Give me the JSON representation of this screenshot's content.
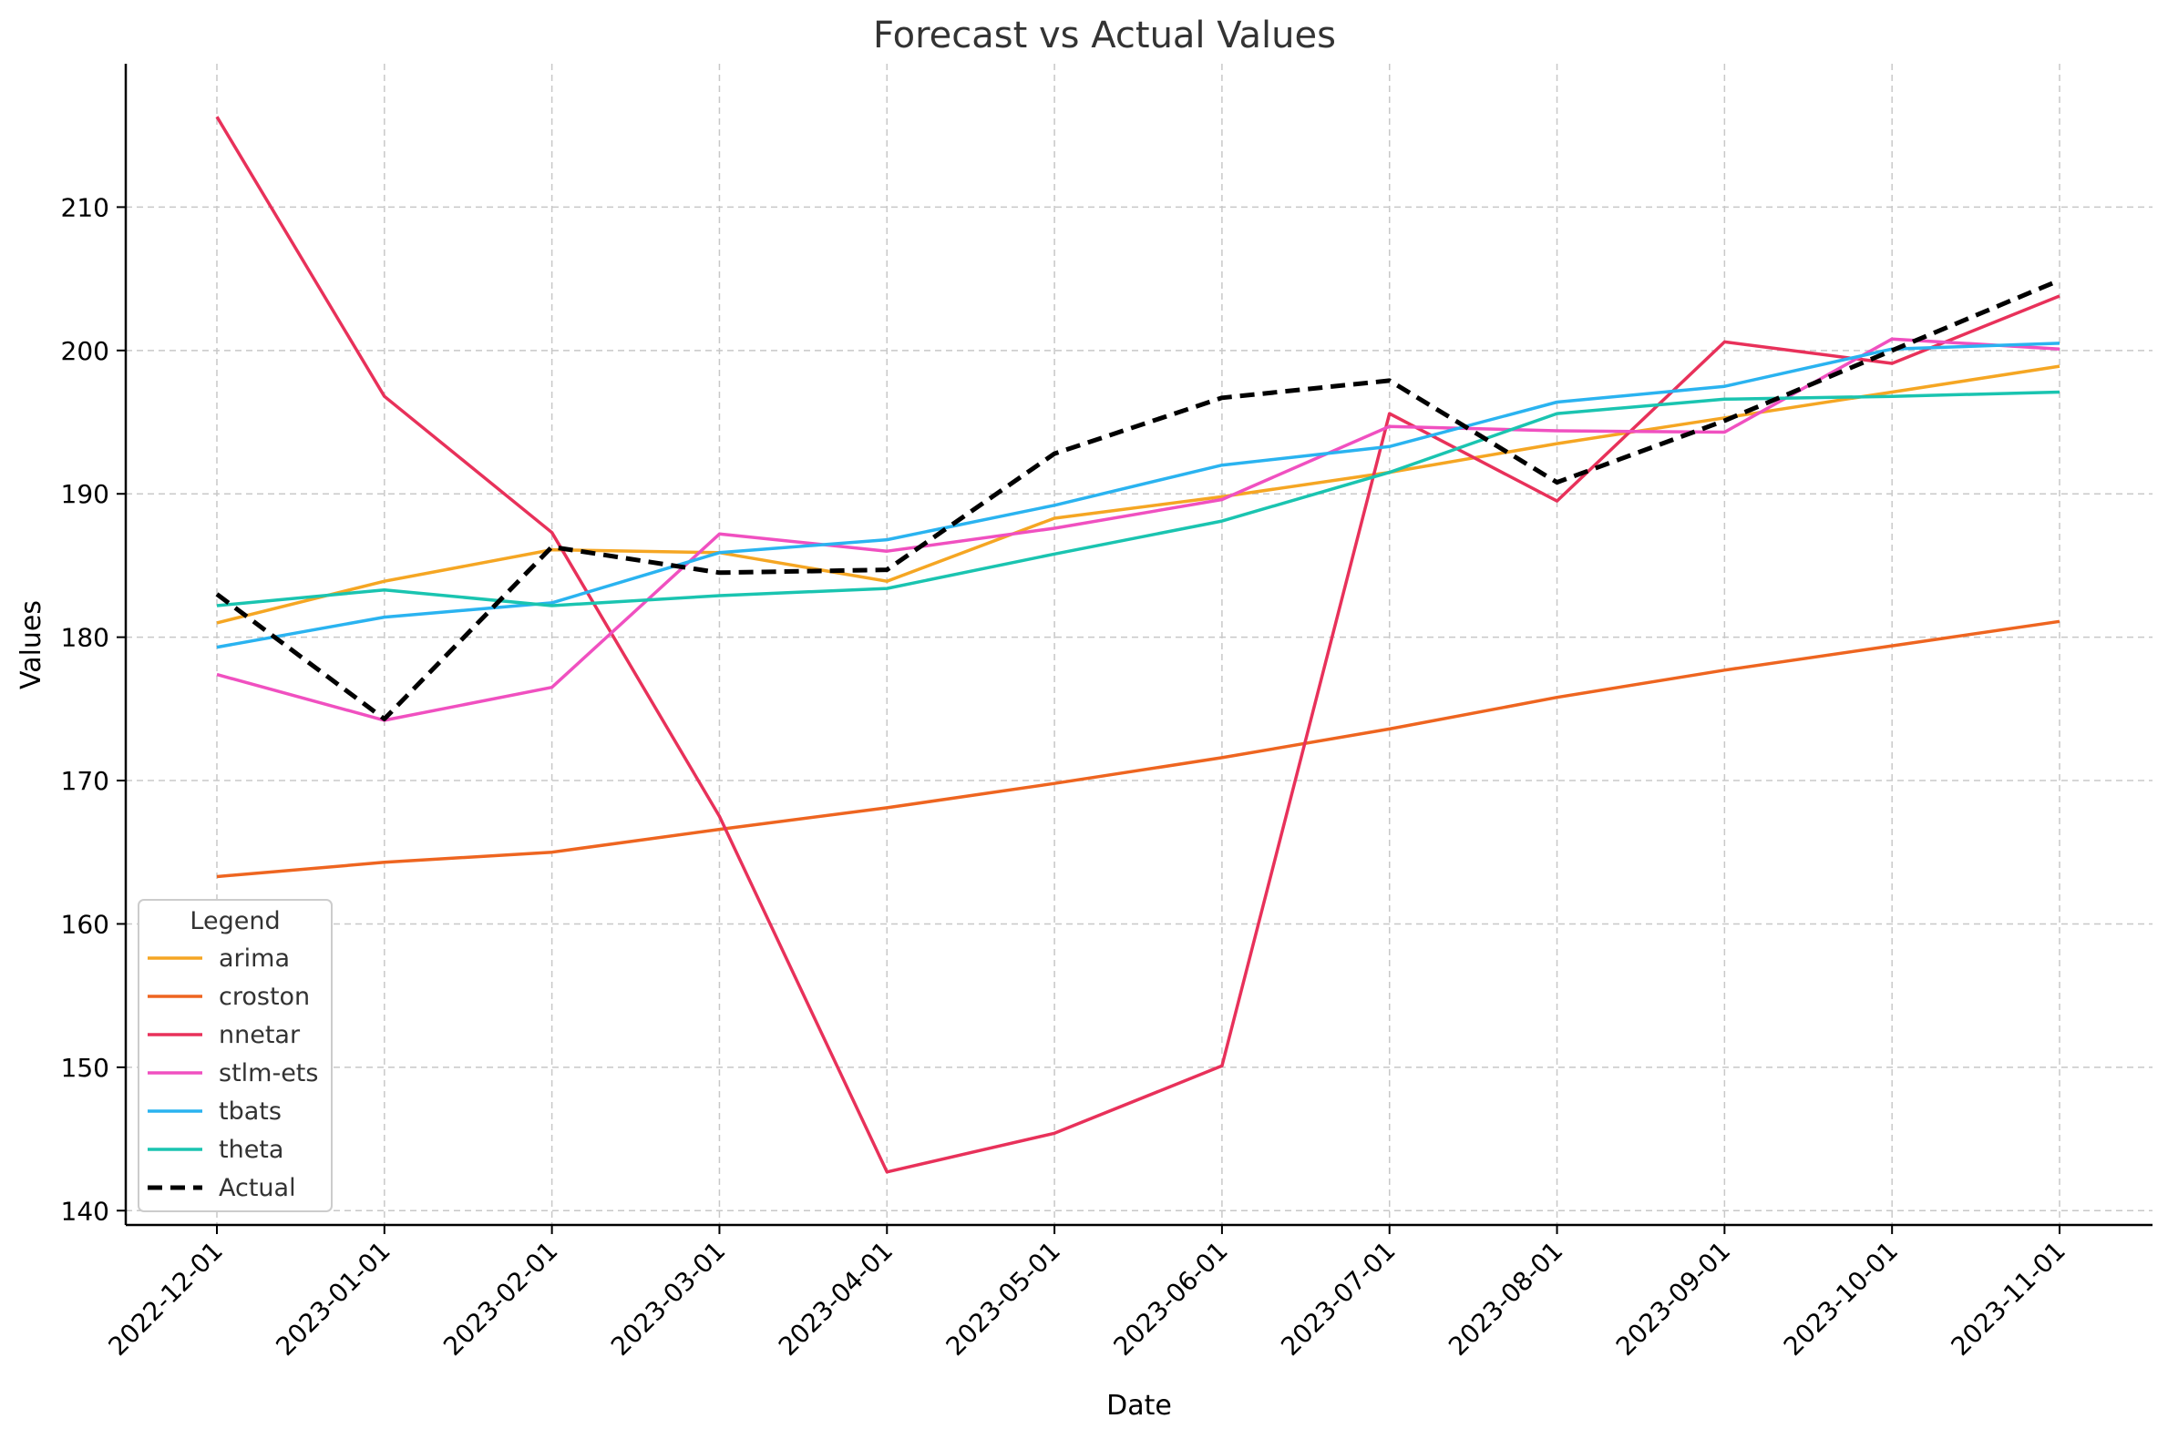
{
  "chart_data": {
    "type": "line",
    "title": "Forecast vs Actual Values",
    "xlabel": "Date",
    "ylabel": "Values",
    "categories": [
      "2022-12-01",
      "2023-01-01",
      "2023-02-01",
      "2023-03-01",
      "2023-04-01",
      "2023-05-01",
      "2023-06-01",
      "2023-07-01",
      "2023-08-01",
      "2023-09-01",
      "2023-10-01",
      "2023-11-01"
    ],
    "ylim": [
      139,
      220
    ],
    "yticks": [
      140,
      150,
      160,
      170,
      180,
      190,
      200,
      210
    ],
    "grid": true,
    "legend": {
      "title": "Legend",
      "placement": "bottom-left"
    },
    "series": [
      {
        "name": "arima",
        "color": "#f5a623",
        "dashed": false,
        "values": [
          181.0,
          183.9,
          186.1,
          185.9,
          183.9,
          188.3,
          189.8,
          191.5,
          193.5,
          195.3,
          197.1,
          198.9
        ]
      },
      {
        "name": "croston",
        "color": "#ee6520",
        "dashed": false,
        "values": [
          163.3,
          164.3,
          165.0,
          166.6,
          168.1,
          169.8,
          171.6,
          173.6,
          175.8,
          177.7,
          179.4,
          181.1
        ]
      },
      {
        "name": "nnetar",
        "color": "#e8315a",
        "dashed": false,
        "values": [
          216.3,
          196.8,
          187.3,
          167.5,
          142.7,
          145.4,
          150.1,
          195.6,
          189.5,
          200.6,
          199.1,
          203.8
        ]
      },
      {
        "name": "stlm-ets",
        "color": "#f050c0",
        "dashed": false,
        "values": [
          177.4,
          174.2,
          176.5,
          187.2,
          186.0,
          187.6,
          189.6,
          194.7,
          194.4,
          194.3,
          200.8,
          200.1
        ]
      },
      {
        "name": "tbats",
        "color": "#2ab3f0",
        "dashed": false,
        "values": [
          179.3,
          181.4,
          182.4,
          185.9,
          186.8,
          189.2,
          192.0,
          193.3,
          196.4,
          197.5,
          200.1,
          200.5
        ]
      },
      {
        "name": "theta",
        "color": "#1ac4b0",
        "dashed": false,
        "values": [
          182.2,
          183.3,
          182.2,
          182.9,
          183.4,
          185.8,
          188.1,
          191.5,
          195.6,
          196.6,
          196.8,
          197.1
        ]
      },
      {
        "name": "Actual",
        "color": "#000000",
        "dashed": true,
        "values": [
          183.0,
          174.3,
          186.3,
          184.5,
          184.7,
          192.8,
          196.7,
          197.9,
          190.8,
          195.1,
          200.0,
          204.9
        ]
      }
    ]
  }
}
